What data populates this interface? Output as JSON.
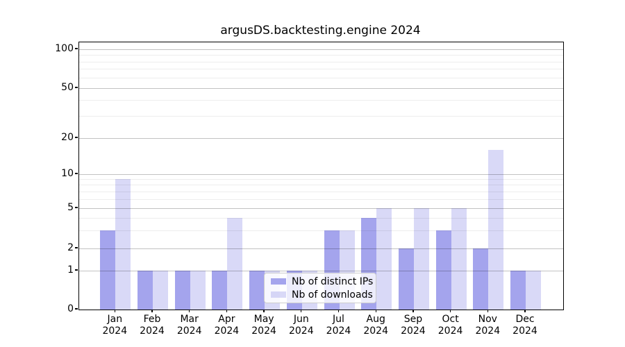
{
  "figure": {
    "title": "argusDS.backtesting.engine 2024"
  },
  "legend": {
    "items": [
      {
        "label": "Nb of distinct IPs",
        "swatch": "solid-bar-swatch"
      },
      {
        "label": "Nb of downloads",
        "swatch": "translucent-bar-swatch"
      }
    ]
  },
  "chart_data": {
    "type": "bar",
    "title": "argusDS.backtesting.engine 2024",
    "categories": [
      "Jan 2024",
      "Feb 2024",
      "Mar 2024",
      "Apr 2024",
      "May 2024",
      "Jun 2024",
      "Jul 2024",
      "Aug 2024",
      "Sep 2024",
      "Oct 2024",
      "Nov 2024",
      "Dec 2024"
    ],
    "series": [
      {
        "name": "Nb of distinct IPs",
        "values": [
          3,
          1,
          1,
          1,
          1,
          1,
          3,
          4,
          2,
          3,
          2,
          1
        ]
      },
      {
        "name": "Nb of downloads",
        "values": [
          9,
          1,
          1,
          4,
          1,
          1,
          3,
          5,
          5,
          5,
          16,
          1
        ]
      }
    ],
    "xlabel": "",
    "ylabel": "",
    "yscale": "symlog",
    "ylim": [
      0,
      115
    ],
    "yticks_major": [
      0,
      1,
      2,
      5,
      10,
      20,
      50,
      100
    ],
    "yticks_minor": [
      3,
      4,
      6,
      7,
      8,
      9,
      30,
      40,
      60,
      70,
      80,
      90
    ],
    "grid": true,
    "legend_position": "inside-lower-center",
    "colors": {
      "bar_solid": "#a4a4ed",
      "bar_translucent_alpha": 0.42,
      "grid_major": "#c2c2c2",
      "grid_minor": "#ededed",
      "spine": "#000000"
    }
  }
}
